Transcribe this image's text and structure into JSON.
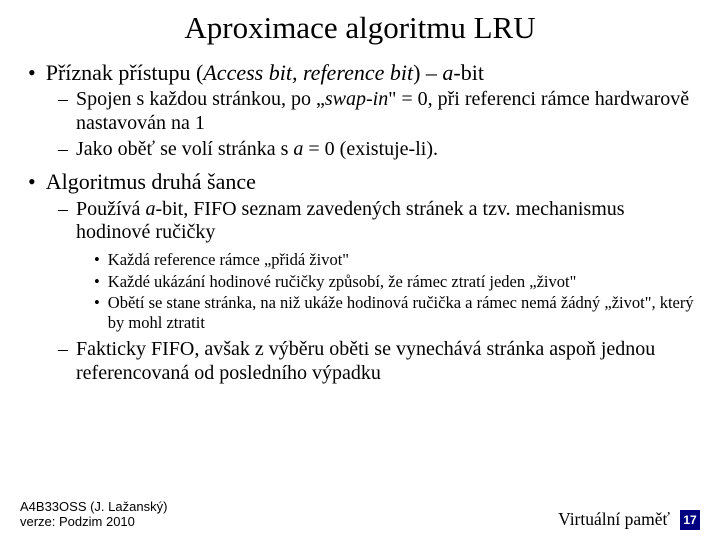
{
  "title": "Aproximace algoritmu LRU",
  "b1": {
    "text_a": "Příznak přístupu (",
    "italic": "Access bit, reference bit",
    "text_b": ") – ",
    "ital2": "a",
    "text_c": "-bit"
  },
  "b1_1a": "Spojen s každou stránkou, po „",
  "b1_1i": "swap-in",
  "b1_1b": "\" = 0, při referenci rámce hardwarově nastavován na 1",
  "b1_2a": "Jako oběť se volí stránka s ",
  "b1_2i": "a",
  "b1_2b": " = 0 (existuje-li).",
  "b2": "Algoritmus druhá šance",
  "b2_1a": "Používá ",
  "b2_1i": "a",
  "b2_1b": "-bit, FIFO seznam zavedených stránek a tzv. mechanismus hodinové ručičky",
  "b2_1_1": "Každá reference rámce „přidá život\"",
  "b2_1_2": "Každé ukázání hodinové ručičky způsobí, že rámec ztratí jeden „život\"",
  "b2_1_3": "Obětí se stane stránka, na niž ukáže hodinová ručička a rámec nemá žádný „život\", který by mohl ztratit",
  "b2_2": "Fakticky FIFO, avšak z výběru oběti se vynechává stránka aspoň jednou referencovaná od posledního výpadku",
  "footer": {
    "left1": "A4B33OSS (J. Lažanský)",
    "left2": "verze: Podzim 2010",
    "right": "Virtuální paměť",
    "page": "17"
  }
}
